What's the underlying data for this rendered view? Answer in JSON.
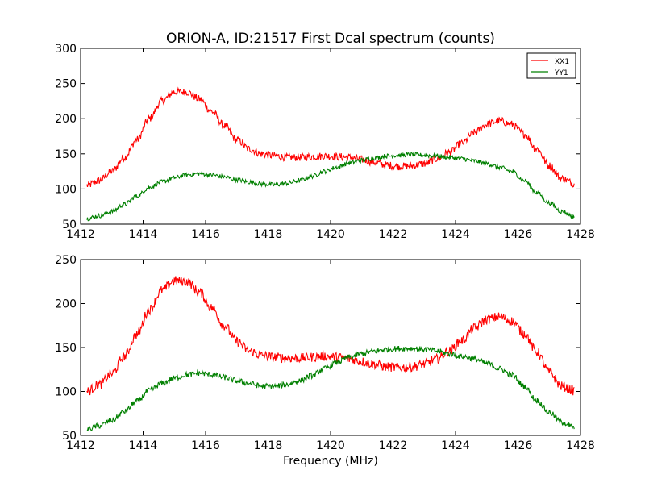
{
  "figure": {
    "title": "ORION-A, ID:21517 First Dcal spectrum (counts)",
    "xlabel": "Frequency (MHz)"
  },
  "colors": {
    "background": "#ffffff",
    "axes": "#000000",
    "xx1": "#ff0000",
    "yy1": "#008000"
  },
  "chart_data": [
    {
      "type": "line",
      "title": "ORION-A, ID:21517 First Dcal spectrum (counts)",
      "xlabel": "",
      "ylabel": "",
      "xlim": [
        1412,
        1428
      ],
      "ylim": [
        50,
        300
      ],
      "x_ticks": [
        "1412",
        "1414",
        "1416",
        "1418",
        "1420",
        "1422",
        "1424",
        "1426",
        "1428"
      ],
      "y_ticks": [
        "50",
        "100",
        "150",
        "200",
        "250",
        "300"
      ],
      "legend": {
        "position": "top-right",
        "entries": [
          "XX1",
          "YY1"
        ]
      },
      "grid": false,
      "x": [
        1412.2,
        1412.6,
        1413.0,
        1413.4,
        1413.8,
        1414.2,
        1414.6,
        1415.0,
        1415.4,
        1415.8,
        1416.2,
        1416.6,
        1417.0,
        1417.4,
        1417.8,
        1418.2,
        1418.6,
        1419.0,
        1419.4,
        1419.8,
        1420.2,
        1420.6,
        1421.0,
        1421.4,
        1421.8,
        1422.2,
        1422.6,
        1423.0,
        1423.4,
        1423.8,
        1424.2,
        1424.6,
        1425.0,
        1425.4,
        1425.8,
        1426.2,
        1426.6,
        1427.0,
        1427.4,
        1427.8
      ],
      "series": [
        {
          "name": "XX1",
          "color": "#ff0000",
          "values": [
            105,
            112,
            125,
            145,
            170,
            200,
            225,
            238,
            238,
            228,
            210,
            190,
            170,
            157,
            150,
            147,
            145,
            145,
            146,
            147,
            146,
            145,
            142,
            138,
            134,
            132,
            133,
            136,
            143,
            152,
            165,
            180,
            192,
            197,
            192,
            178,
            157,
            133,
            115,
            108
          ]
        },
        {
          "name": "YY1",
          "color": "#008000",
          "values": [
            58,
            62,
            68,
            78,
            90,
            102,
            110,
            116,
            120,
            122,
            120,
            117,
            113,
            110,
            107,
            106,
            108,
            112,
            118,
            125,
            131,
            137,
            141,
            144,
            147,
            148,
            149,
            148,
            147,
            145,
            143,
            140,
            136,
            131,
            125,
            112,
            95,
            80,
            68,
            61
          ]
        }
      ]
    },
    {
      "type": "line",
      "title": "",
      "xlabel": "Frequency (MHz)",
      "ylabel": "",
      "xlim": [
        1412,
        1428
      ],
      "ylim": [
        50,
        250
      ],
      "x_ticks": [
        "1412",
        "1414",
        "1416",
        "1418",
        "1420",
        "1422",
        "1424",
        "1426",
        "1428"
      ],
      "y_ticks": [
        "50",
        "100",
        "150",
        "200",
        "250"
      ],
      "grid": false,
      "x": [
        1412.2,
        1412.6,
        1413.0,
        1413.4,
        1413.8,
        1414.2,
        1414.6,
        1415.0,
        1415.4,
        1415.8,
        1416.2,
        1416.6,
        1417.0,
        1417.4,
        1417.8,
        1418.2,
        1418.6,
        1419.0,
        1419.4,
        1419.8,
        1420.2,
        1420.6,
        1421.0,
        1421.4,
        1421.8,
        1422.2,
        1422.6,
        1423.0,
        1423.4,
        1423.8,
        1424.2,
        1424.6,
        1425.0,
        1425.4,
        1425.8,
        1426.2,
        1426.6,
        1427.0,
        1427.4,
        1427.8
      ],
      "series": [
        {
          "name": "XX1",
          "color": "#ff0000",
          "values": [
            100,
            108,
            120,
            140,
            165,
            193,
            215,
            226,
            225,
            213,
            195,
            175,
            157,
            146,
            141,
            139,
            138,
            138,
            139,
            140,
            139,
            137,
            134,
            131,
            128,
            127,
            128,
            131,
            137,
            146,
            158,
            172,
            182,
            185,
            180,
            166,
            145,
            122,
            106,
            101
          ]
        },
        {
          "name": "YY1",
          "color": "#008000",
          "values": [
            57,
            61,
            67,
            77,
            89,
            101,
            109,
            115,
            119,
            121,
            119,
            116,
            112,
            109,
            106,
            106,
            108,
            112,
            118,
            126,
            133,
            139,
            143,
            146,
            148,
            149,
            149,
            148,
            146,
            143,
            140,
            137,
            132,
            126,
            119,
            106,
            90,
            76,
            65,
            59
          ]
        }
      ]
    }
  ]
}
